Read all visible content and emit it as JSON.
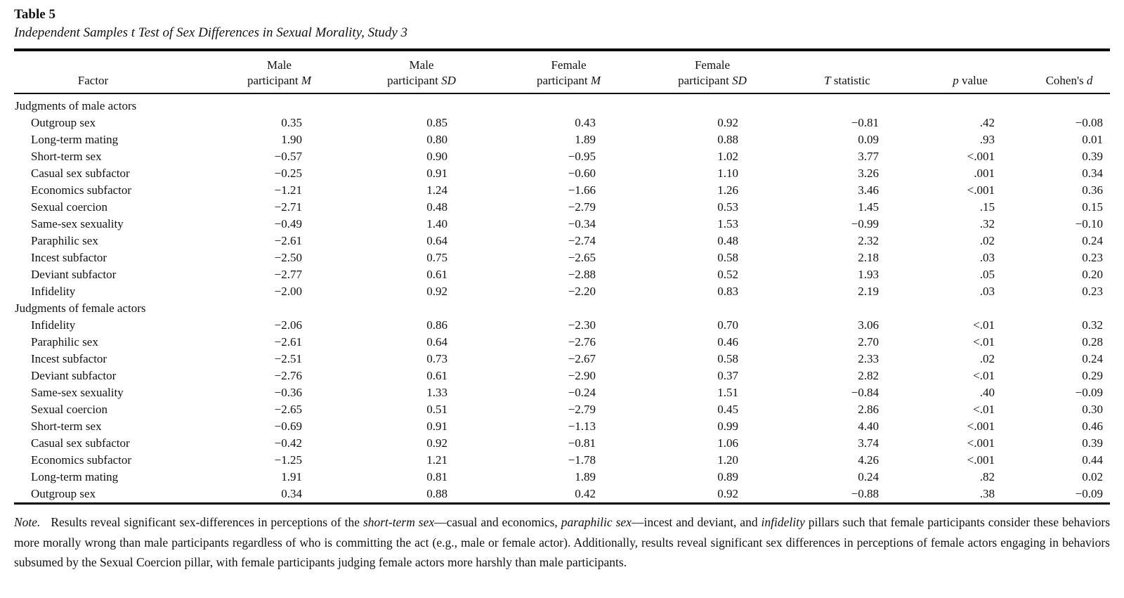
{
  "table": {
    "label": "Table 5",
    "caption": "Independent Samples t Test of Sex Differences in Sexual Morality, Study 3",
    "columns": [
      {
        "name": "factor",
        "line1": "",
        "line2": [
          {
            "t": "Factor"
          }
        ]
      },
      {
        "name": "male-m",
        "line1": "Male",
        "line2": [
          {
            "t": "participant "
          },
          {
            "t": "M",
            "i": true
          }
        ]
      },
      {
        "name": "male-sd",
        "line1": "Male",
        "line2": [
          {
            "t": "participant "
          },
          {
            "t": "SD",
            "i": true
          }
        ]
      },
      {
        "name": "female-m",
        "line1": "Female",
        "line2": [
          {
            "t": "participant "
          },
          {
            "t": "M",
            "i": true
          }
        ]
      },
      {
        "name": "female-sd",
        "line1": "Female",
        "line2": [
          {
            "t": "participant "
          },
          {
            "t": "SD",
            "i": true
          }
        ]
      },
      {
        "name": "t-statistic",
        "line1": "",
        "line2": [
          {
            "t": "T",
            "i": true
          },
          {
            "t": " statistic"
          }
        ]
      },
      {
        "name": "p-value",
        "line1": "",
        "line2": [
          {
            "t": "p",
            "i": true
          },
          {
            "t": " value"
          }
        ]
      },
      {
        "name": "cohens-d",
        "line1": "",
        "line2": [
          {
            "t": "Cohen's "
          },
          {
            "t": "d",
            "i": true
          }
        ]
      }
    ],
    "sections": [
      {
        "header": "Judgments of male actors",
        "rows": [
          {
            "factor": "Outgroup sex",
            "values": [
              "0.35",
              "0.85",
              "0.43",
              "0.92",
              "−0.81",
              ".42",
              "−0.08"
            ]
          },
          {
            "factor": "Long-term mating",
            "values": [
              "1.90",
              "0.80",
              "1.89",
              "0.88",
              "0.09",
              ".93",
              "0.01"
            ]
          },
          {
            "factor": "Short-term sex",
            "values": [
              "−0.57",
              "0.90",
              "−0.95",
              "1.02",
              "3.77",
              "<.001",
              "0.39"
            ]
          },
          {
            "factor": "Casual sex subfactor",
            "values": [
              "−0.25",
              "0.91",
              "−0.60",
              "1.10",
              "3.26",
              ".001",
              "0.34"
            ]
          },
          {
            "factor": "Economics subfactor",
            "values": [
              "−1.21",
              "1.24",
              "−1.66",
              "1.26",
              "3.46",
              "<.001",
              "0.36"
            ]
          },
          {
            "factor": "Sexual coercion",
            "values": [
              "−2.71",
              "0.48",
              "−2.79",
              "0.53",
              "1.45",
              ".15",
              "0.15"
            ]
          },
          {
            "factor": "Same-sex sexuality",
            "values": [
              "−0.49",
              "1.40",
              "−0.34",
              "1.53",
              "−0.99",
              ".32",
              "−0.10"
            ]
          },
          {
            "factor": "Paraphilic sex",
            "values": [
              "−2.61",
              "0.64",
              "−2.74",
              "0.48",
              "2.32",
              ".02",
              "0.24"
            ]
          },
          {
            "factor": "Incest subfactor",
            "values": [
              "−2.50",
              "0.75",
              "−2.65",
              "0.58",
              "2.18",
              ".03",
              "0.23"
            ]
          },
          {
            "factor": "Deviant subfactor",
            "values": [
              "−2.77",
              "0.61",
              "−2.88",
              "0.52",
              "1.93",
              ".05",
              "0.20"
            ]
          },
          {
            "factor": "Infidelity",
            "values": [
              "−2.00",
              "0.92",
              "−2.20",
              "0.83",
              "2.19",
              ".03",
              "0.23"
            ]
          }
        ]
      },
      {
        "header": "Judgments of female actors",
        "rows": [
          {
            "factor": "Infidelity",
            "values": [
              "−2.06",
              "0.86",
              "−2.30",
              "0.70",
              "3.06",
              "<.01",
              "0.32"
            ]
          },
          {
            "factor": "Paraphilic sex",
            "values": [
              "−2.61",
              "0.64",
              "−2.76",
              "0.46",
              "2.70",
              "<.01",
              "0.28"
            ]
          },
          {
            "factor": "Incest subfactor",
            "values": [
              "−2.51",
              "0.73",
              "−2.67",
              "0.58",
              "2.33",
              ".02",
              "0.24"
            ]
          },
          {
            "factor": "Deviant subfactor",
            "values": [
              "−2.76",
              "0.61",
              "−2.90",
              "0.37",
              "2.82",
              "<.01",
              "0.29"
            ]
          },
          {
            "factor": "Same-sex sexuality",
            "values": [
              "−0.36",
              "1.33",
              "−0.24",
              "1.51",
              "−0.84",
              ".40",
              "−0.09"
            ]
          },
          {
            "factor": "Sexual coercion",
            "values": [
              "−2.65",
              "0.51",
              "−2.79",
              "0.45",
              "2.86",
              "<.01",
              "0.30"
            ]
          },
          {
            "factor": "Short-term sex",
            "values": [
              "−0.69",
              "0.91",
              "−1.13",
              "0.99",
              "4.40",
              "<.001",
              "0.46"
            ]
          },
          {
            "factor": "Casual sex subfactor",
            "values": [
              "−0.42",
              "0.92",
              "−0.81",
              "1.06",
              "3.74",
              "<.001",
              "0.39"
            ]
          },
          {
            "factor": "Economics subfactor",
            "values": [
              "−1.25",
              "1.21",
              "−1.78",
              "1.20",
              "4.26",
              "<.001",
              "0.44"
            ]
          },
          {
            "factor": "Long-term mating",
            "values": [
              "1.91",
              "0.81",
              "1.89",
              "0.89",
              "0.24",
              ".82",
              "0.02"
            ]
          },
          {
            "factor": "Outgroup sex",
            "values": [
              "0.34",
              "0.88",
              "0.42",
              "0.92",
              "−0.88",
              ".38",
              "−0.09"
            ]
          }
        ]
      }
    ]
  },
  "note": {
    "parts": [
      {
        "t": "Note.",
        "i": true
      },
      {
        "t": "   Results reveal significant sex-differences in perceptions of the "
      },
      {
        "t": "short-term sex",
        "i": true
      },
      {
        "t": "—casual and economics, "
      },
      {
        "t": "paraphilic sex",
        "i": true
      },
      {
        "t": "—incest and deviant, and "
      },
      {
        "t": "infidelity",
        "i": true
      },
      {
        "t": " pillars such that female participants consider these behaviors more morally wrong than male participants regardless of who is committing the act (e.g., male or female actor). Additionally, results reveal significant sex differences in perceptions of female actors engaging in behaviors subsumed by the Sexual Coercion pillar, with female participants judging female actors more harshly than male participants."
      }
    ]
  }
}
